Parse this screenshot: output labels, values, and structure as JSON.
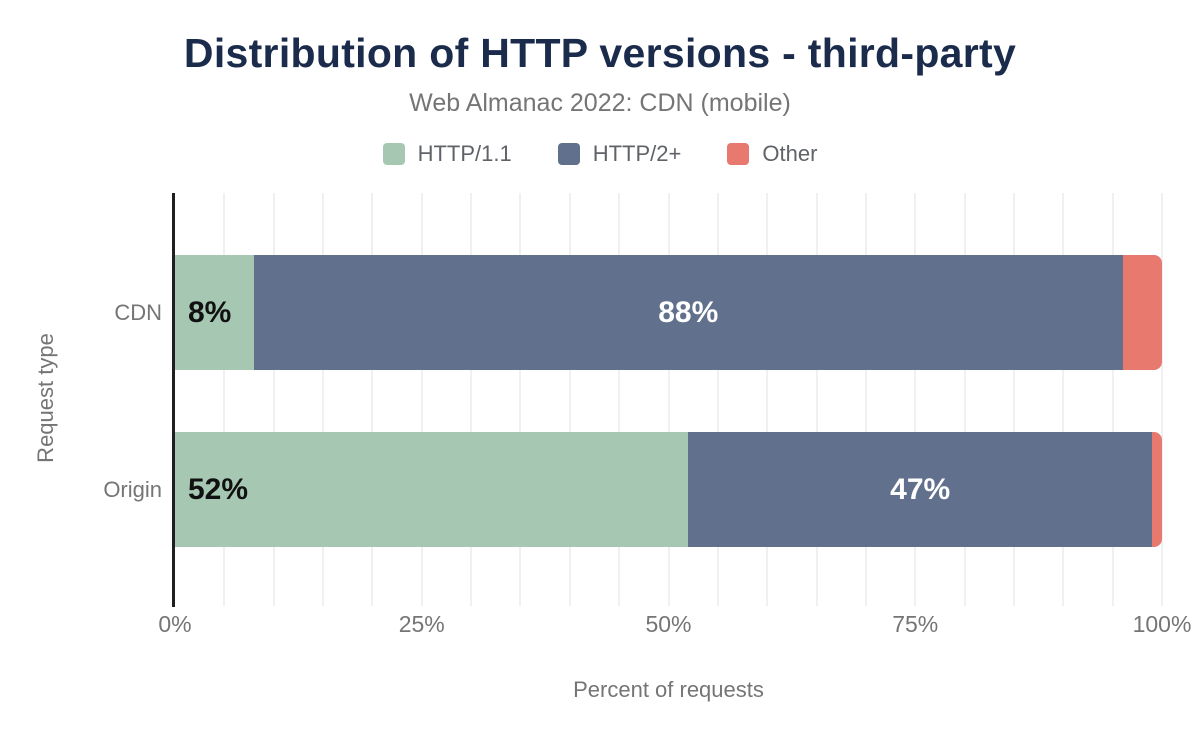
{
  "header": {
    "title": "Distribution of HTTP versions - third-party",
    "subtitle": "Web Almanac 2022: CDN (mobile)"
  },
  "legend": {
    "items": [
      {
        "label": "HTTP/1.1",
        "color": "#a6c8b3"
      },
      {
        "label": "HTTP/2+",
        "color": "#61708c"
      },
      {
        "label": "Other",
        "color": "#e8796f"
      }
    ]
  },
  "axes": {
    "x_title": "Percent of requests",
    "y_title": "Request type",
    "x_ticks": [
      {
        "label": "0%",
        "pos": 0
      },
      {
        "label": "25%",
        "pos": 25
      },
      {
        "label": "50%",
        "pos": 50
      },
      {
        "label": "75%",
        "pos": 75
      },
      {
        "label": "100%",
        "pos": 100
      }
    ]
  },
  "chart_data": {
    "type": "bar",
    "orientation": "horizontal",
    "stacked": true,
    "title": "Distribution of HTTP versions - third-party",
    "subtitle": "Web Almanac 2022: CDN (mobile)",
    "xlabel": "Percent of requests",
    "ylabel": "Request type",
    "xlim": [
      0,
      100
    ],
    "grid": {
      "minor_step_percent": 5,
      "color": "#f0f0f0"
    },
    "legend_position": "top",
    "categories": [
      "CDN",
      "Origin"
    ],
    "series": [
      {
        "name": "HTTP/1.1",
        "color": "#a6c8b3",
        "values": [
          8,
          52
        ]
      },
      {
        "name": "HTTP/2+",
        "color": "#61708c",
        "values": [
          88,
          47
        ]
      },
      {
        "name": "Other",
        "color": "#e8796f",
        "values": [
          4,
          1
        ]
      }
    ],
    "bar_labels": [
      [
        "8%",
        "88%",
        ""
      ],
      [
        "52%",
        "47%",
        ""
      ]
    ]
  },
  "colors": {
    "title": "#1b2b4b",
    "muted_text": "#757575",
    "legend_text": "#5f6368",
    "axis_line": "#1f1f1f",
    "label_dark": "#111111",
    "label_light": "#ffffff"
  }
}
